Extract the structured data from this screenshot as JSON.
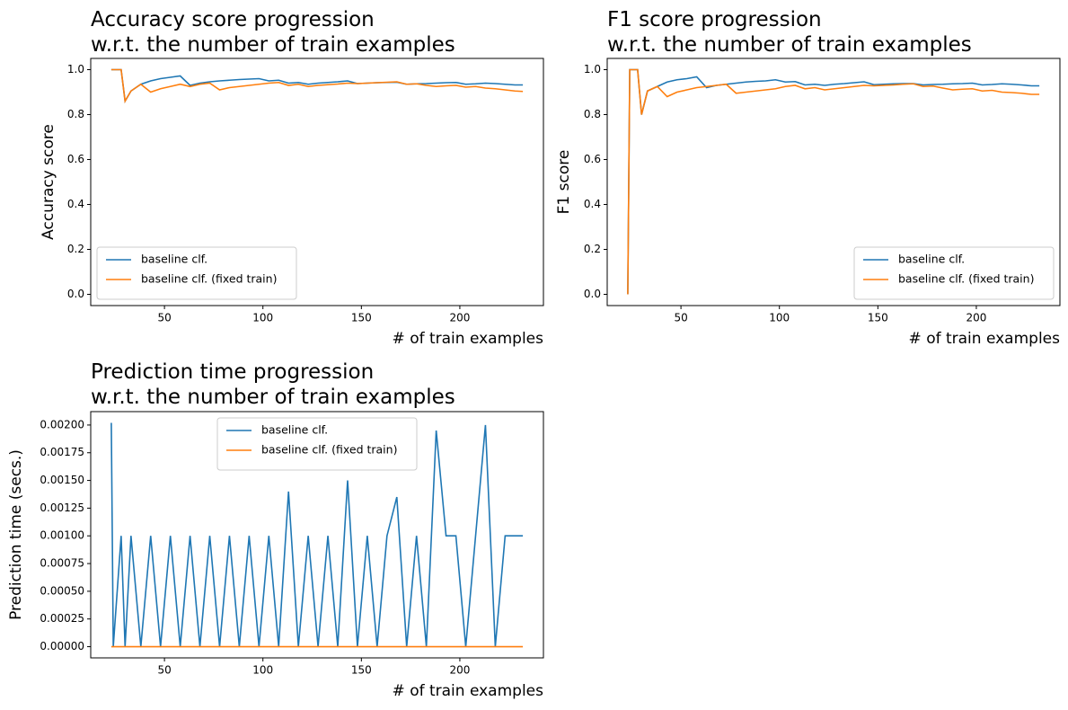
{
  "chart_data": [
    {
      "type": "line",
      "title": "Accuracy score progression\nw.r.t. the number of train examples",
      "x_label": "# of train examples",
      "y_label": "Accuracy score",
      "legend": "lower left",
      "x": [
        23,
        24,
        28,
        30,
        33,
        38,
        43,
        48,
        53,
        58,
        63,
        68,
        73,
        78,
        83,
        88,
        93,
        98,
        103,
        108,
        113,
        118,
        123,
        128,
        133,
        138,
        143,
        148,
        153,
        158,
        163,
        168,
        173,
        178,
        183,
        188,
        193,
        198,
        203,
        208,
        213,
        218,
        223,
        228,
        232
      ],
      "series": [
        {
          "name": "baseline clf.",
          "color": "#1f77b4",
          "values": [
            1.0,
            1.0,
            1.0,
            0.86,
            0.905,
            0.935,
            0.95,
            0.96,
            0.966,
            0.972,
            0.93,
            0.94,
            0.946,
            0.95,
            0.953,
            0.956,
            0.958,
            0.96,
            0.95,
            0.953,
            0.94,
            0.943,
            0.935,
            0.94,
            0.943,
            0.946,
            0.95,
            0.938,
            0.94,
            0.942,
            0.943,
            0.944,
            0.935,
            0.937,
            0.938,
            0.94,
            0.942,
            0.943,
            0.935,
            0.937,
            0.94,
            0.938,
            0.935,
            0.932,
            0.932
          ]
        },
        {
          "name": "baseline clf. (fixed train)",
          "color": "#ff7f0e",
          "values": [
            1.0,
            1.0,
            1.0,
            0.86,
            0.905,
            0.935,
            0.9,
            0.915,
            0.925,
            0.935,
            0.925,
            0.935,
            0.94,
            0.91,
            0.92,
            0.925,
            0.93,
            0.935,
            0.94,
            0.943,
            0.93,
            0.935,
            0.925,
            0.93,
            0.933,
            0.936,
            0.94,
            0.938,
            0.94,
            0.942,
            0.944,
            0.946,
            0.935,
            0.937,
            0.93,
            0.925,
            0.928,
            0.93,
            0.922,
            0.925,
            0.918,
            0.915,
            0.91,
            0.905,
            0.903
          ]
        }
      ],
      "xlim": [
        12.55,
        242.45
      ],
      "xticks": [
        50,
        100,
        150,
        200
      ],
      "ylim": [
        -0.05,
        1.05
      ],
      "yticks": [
        {
          "value": 0,
          "label": "0.0"
        },
        0.2,
        0.4,
        0.6,
        0.8,
        {
          "value": 1,
          "label": "1.0"
        }
      ]
    },
    {
      "type": "line",
      "title": "F1 score progression\nw.r.t. the number of train examples",
      "x_label": "# of train examples",
      "y_label": "F1 score",
      "legend": "lower right",
      "x": [
        23,
        24,
        28,
        30,
        33,
        38,
        43,
        48,
        53,
        58,
        63,
        68,
        73,
        78,
        83,
        88,
        93,
        98,
        103,
        108,
        113,
        118,
        123,
        128,
        133,
        138,
        143,
        148,
        153,
        158,
        163,
        168,
        173,
        178,
        183,
        188,
        193,
        198,
        203,
        208,
        213,
        218,
        223,
        228,
        232
      ],
      "series": [
        {
          "name": "baseline clf.",
          "color": "#1f77b4",
          "values": [
            0,
            1.0,
            1.0,
            0.8,
            0.905,
            0.925,
            0.945,
            0.955,
            0.96,
            0.968,
            0.92,
            0.93,
            0.935,
            0.94,
            0.945,
            0.948,
            0.95,
            0.955,
            0.945,
            0.947,
            0.932,
            0.935,
            0.93,
            0.935,
            0.938,
            0.942,
            0.946,
            0.933,
            0.935,
            0.937,
            0.938,
            0.938,
            0.932,
            0.934,
            0.935,
            0.937,
            0.938,
            0.94,
            0.932,
            0.934,
            0.937,
            0.935,
            0.932,
            0.928,
            0.928
          ]
        },
        {
          "name": "baseline clf. (fixed train)",
          "color": "#ff7f0e",
          "values": [
            0,
            1.0,
            1.0,
            0.8,
            0.905,
            0.925,
            0.88,
            0.9,
            0.91,
            0.92,
            0.925,
            0.93,
            0.935,
            0.895,
            0.9,
            0.905,
            0.91,
            0.915,
            0.925,
            0.93,
            0.915,
            0.92,
            0.91,
            0.915,
            0.92,
            0.925,
            0.93,
            0.928,
            0.93,
            0.932,
            0.935,
            0.937,
            0.925,
            0.927,
            0.918,
            0.91,
            0.913,
            0.915,
            0.905,
            0.908,
            0.9,
            0.898,
            0.895,
            0.89,
            0.89
          ]
        }
      ],
      "xlim": [
        12.55,
        242.45
      ],
      "xticks": [
        50,
        100,
        150,
        200
      ],
      "ylim": [
        -0.05,
        1.05
      ],
      "yticks": [
        {
          "value": 0,
          "label": "0.0"
        },
        0.2,
        0.4,
        0.6,
        0.8,
        {
          "value": 1,
          "label": "1.0"
        }
      ]
    },
    {
      "type": "line",
      "title": "Prediction time progression\nw.r.t. the number of train examples",
      "x_label": "# of train examples",
      "y_label": "Prediction time (secs.)",
      "legend": "upper center",
      "x": [
        23,
        24,
        28,
        30,
        33,
        38,
        43,
        48,
        53,
        58,
        63,
        68,
        73,
        78,
        83,
        88,
        93,
        98,
        103,
        108,
        113,
        118,
        123,
        128,
        133,
        138,
        143,
        148,
        153,
        158,
        163,
        168,
        173,
        178,
        183,
        188,
        193,
        198,
        203,
        208,
        213,
        218,
        223,
        228,
        232
      ],
      "series": [
        {
          "name": "baseline clf.",
          "color": "#1f77b4",
          "values": [
            0.00202,
            0,
            0.001,
            0,
            0.001,
            0,
            0.001,
            0,
            0.001,
            0,
            0.001,
            0,
            0.001,
            0,
            0.001,
            0,
            0.001,
            0,
            0.001,
            0,
            0.0014,
            0,
            0.001,
            0,
            0.001,
            0,
            0.0015,
            0,
            0.001,
            0,
            0.001,
            0.00135,
            0,
            0.001,
            0,
            0.00195,
            0.001,
            0.001,
            0,
            0.001,
            0.002,
            0,
            0.001,
            0.001,
            0.001
          ]
        },
        {
          "name": "baseline clf. (fixed train)",
          "color": "#ff7f0e",
          "values": [
            0,
            0,
            0,
            0,
            0,
            0,
            0,
            0,
            0,
            0,
            0,
            0,
            0,
            0,
            0,
            0,
            0,
            0,
            0,
            0,
            0,
            0,
            0,
            0,
            0,
            0,
            0,
            0,
            0,
            0,
            0,
            0,
            0,
            0,
            0,
            0,
            0,
            0,
            0,
            0,
            0,
            0,
            0,
            0,
            0
          ]
        }
      ],
      "xlim": [
        12.55,
        242.45
      ],
      "xticks": [
        50,
        100,
        150,
        200
      ],
      "ylim": [
        -0.000101,
        0.002121
      ],
      "yticks": [
        {
          "value": 0,
          "label": "0.00000"
        },
        {
          "value": 0.00025,
          "label": "0.00025"
        },
        {
          "value": 0.0005,
          "label": "0.00050"
        },
        {
          "value": 0.00075,
          "label": "0.00075"
        },
        {
          "value": 0.001,
          "label": "0.00100"
        },
        {
          "value": 0.00125,
          "label": "0.00125"
        },
        {
          "value": 0.0015,
          "label": "0.00150"
        },
        {
          "value": 0.00175,
          "label": "0.00175"
        },
        {
          "value": 0.002,
          "label": "0.00200"
        }
      ]
    }
  ]
}
